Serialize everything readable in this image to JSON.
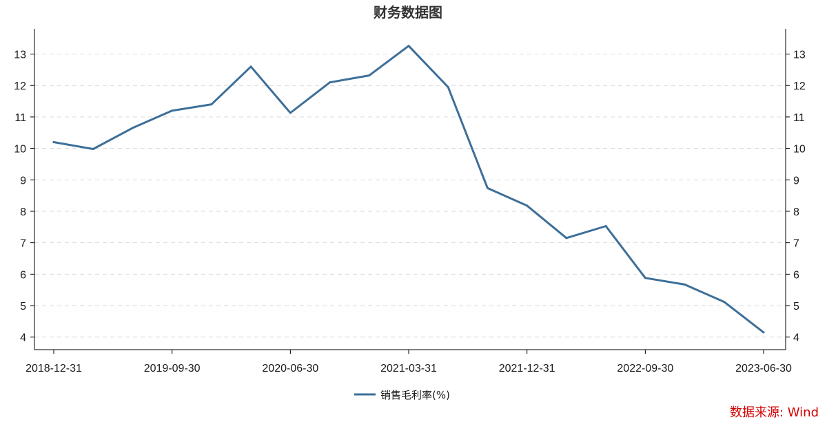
{
  "chart_data": {
    "type": "line",
    "title": "财务数据图",
    "source": "数据来源: Wind",
    "xlabel": "",
    "ylabel": "",
    "x": [
      "2018-12-31",
      "2019-03-31",
      "2019-06-30",
      "2019-09-30",
      "2019-12-31",
      "2020-03-31",
      "2020-06-30",
      "2020-09-30",
      "2020-12-31",
      "2021-03-31",
      "2021-06-30",
      "2021-09-30",
      "2021-12-31",
      "2022-03-31",
      "2022-06-30",
      "2022-09-30",
      "2022-12-31",
      "2023-03-31",
      "2023-06-30"
    ],
    "x_tick_labels": [
      "2018-12-31",
      "2019-09-30",
      "2020-06-30",
      "2021-03-31",
      "2021-12-31",
      "2022-09-30",
      "2023-06-30"
    ],
    "series": [
      {
        "name": "销售毛利率(%)",
        "color": "#3d6f99",
        "values": [
          10.2,
          9.98,
          10.65,
          11.2,
          11.4,
          12.6,
          11.13,
          12.1,
          12.32,
          13.26,
          11.95,
          8.74,
          8.18,
          7.15,
          7.53,
          5.88,
          5.67,
          5.12,
          4.15
        ]
      }
    ],
    "ylim": [
      3.6,
      13.8
    ],
    "y_ticks": [
      4,
      5,
      6,
      7,
      8,
      9,
      10,
      11,
      12,
      13
    ],
    "secondary_y_axis": true,
    "grid": "horizontal-dashed",
    "legend_position": "bottom-center"
  }
}
